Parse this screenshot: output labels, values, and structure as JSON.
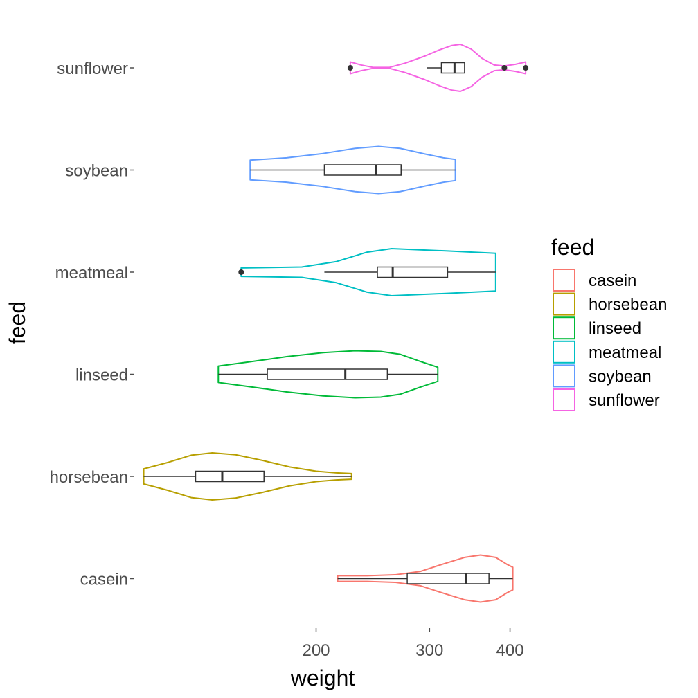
{
  "chart_data": {
    "type": "violin",
    "orientation": "horizontal",
    "x_scale": "log10",
    "xlabel": "weight",
    "ylabel": "feed",
    "x_ticks": [
      200,
      300,
      400
    ],
    "x_tick_labels": [
      "200",
      "300",
      "400"
    ],
    "xlim": [
      106,
      426
    ],
    "grid": false,
    "legend": {
      "title": "feed",
      "position": "right",
      "entries": [
        "casein",
        "horsebean",
        "linseed",
        "meatmeal",
        "soybean",
        "sunflower"
      ]
    },
    "categories": [
      "casein",
      "horsebean",
      "linseed",
      "meatmeal",
      "soybean",
      "sunflower"
    ],
    "series": [
      {
        "name": "casein",
        "color": "#F8766D",
        "box": {
          "lower_whisker": 216,
          "q1": 277,
          "median": 342,
          "q3": 371,
          "upper_whisker": 404
        },
        "outliers": [],
        "density_profile": [
          [
            216,
            0.12
          ],
          [
            240,
            0.12
          ],
          [
            265,
            0.16
          ],
          [
            290,
            0.3
          ],
          [
            315,
            0.62
          ],
          [
            340,
            0.9
          ],
          [
            360,
            1.0
          ],
          [
            380,
            0.9
          ],
          [
            396,
            0.6
          ],
          [
            404,
            0.48
          ]
        ]
      },
      {
        "name": "horsebean",
        "color": "#B79F00",
        "box": {
          "lower_whisker": 108,
          "q1": 130,
          "median": 143,
          "q3": 166,
          "upper_whisker": 227
        },
        "outliers": [],
        "density_profile": [
          [
            108,
            0.32
          ],
          [
            118,
            0.6
          ],
          [
            128,
            0.9
          ],
          [
            138,
            1.0
          ],
          [
            150,
            0.92
          ],
          [
            165,
            0.68
          ],
          [
            182,
            0.4
          ],
          [
            200,
            0.22
          ],
          [
            215,
            0.15
          ],
          [
            227,
            0.12
          ]
        ]
      },
      {
        "name": "linseed",
        "color": "#00BA38",
        "box": {
          "lower_whisker": 141,
          "q1": 168,
          "median": 222,
          "q3": 258,
          "upper_whisker": 309
        },
        "outliers": [],
        "density_profile": [
          [
            141,
            0.35
          ],
          [
            160,
            0.55
          ],
          [
            180,
            0.75
          ],
          [
            205,
            0.92
          ],
          [
            230,
            1.0
          ],
          [
            252,
            0.97
          ],
          [
            270,
            0.85
          ],
          [
            290,
            0.55
          ],
          [
            309,
            0.3
          ]
        ]
      },
      {
        "name": "meatmeal",
        "color": "#00BFC4",
        "box": {
          "lower_whisker": 206,
          "q1": 249,
          "median": 263,
          "q3": 320,
          "upper_whisker": 380
        },
        "outliers": [
          153
        ],
        "density_profile": [
          [
            153,
            0.18
          ],
          [
            170,
            0.2
          ],
          [
            190,
            0.22
          ],
          [
            215,
            0.45
          ],
          [
            240,
            0.85
          ],
          [
            262,
            1.0
          ],
          [
            290,
            0.95
          ],
          [
            320,
            0.9
          ],
          [
            350,
            0.85
          ],
          [
            380,
            0.8
          ]
        ]
      },
      {
        "name": "soybean",
        "color": "#619CFF",
        "box": {
          "lower_whisker": 158,
          "q1": 206,
          "median": 248,
          "q3": 271,
          "upper_whisker": 329
        },
        "outliers": [],
        "density_profile": [
          [
            158,
            0.42
          ],
          [
            180,
            0.52
          ],
          [
            205,
            0.7
          ],
          [
            230,
            0.92
          ],
          [
            250,
            1.0
          ],
          [
            270,
            0.92
          ],
          [
            295,
            0.68
          ],
          [
            315,
            0.52
          ],
          [
            329,
            0.45
          ]
        ]
      },
      {
        "name": "sunflower",
        "color": "#F564E3",
        "box": {
          "lower_whisker": 297,
          "q1": 313,
          "median": 328,
          "q3": 340,
          "upper_whisker": 340
        },
        "outliers": [
          226,
          392,
          423
        ],
        "density_profile": [
          [
            226,
            0.25
          ],
          [
            235,
            0.12
          ],
          [
            245,
            0.02
          ],
          [
            260,
            0.02
          ],
          [
            275,
            0.2
          ],
          [
            295,
            0.5
          ],
          [
            310,
            0.75
          ],
          [
            325,
            0.95
          ],
          [
            335,
            1.0
          ],
          [
            348,
            0.8
          ],
          [
            362,
            0.4
          ],
          [
            378,
            0.12
          ],
          [
            392,
            0.08
          ],
          [
            408,
            0.15
          ],
          [
            423,
            0.25
          ]
        ]
      }
    ]
  }
}
